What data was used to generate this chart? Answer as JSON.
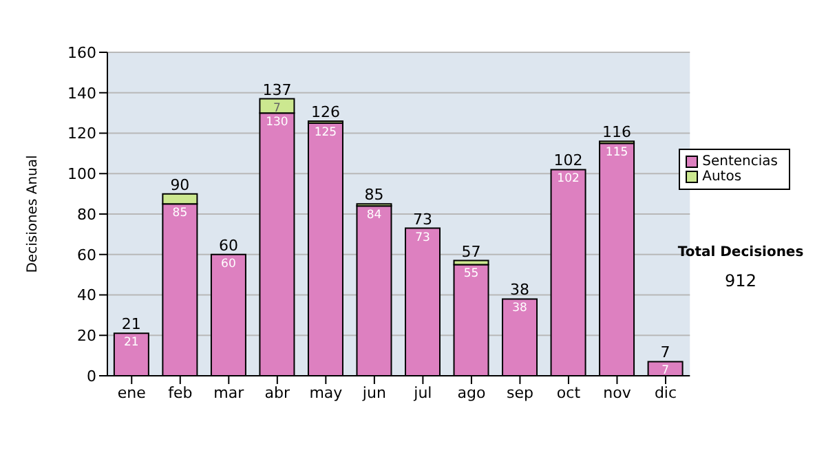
{
  "chart_data": {
    "type": "bar",
    "stacked": true,
    "ylabel": "Decisiones Anual",
    "categories": [
      "ene",
      "feb",
      "mar",
      "abr",
      "may",
      "jun",
      "jul",
      "ago",
      "sep",
      "oct",
      "nov",
      "dic"
    ],
    "series": [
      {
        "name": "Sentencias",
        "color": "#dd80c0",
        "values": [
          21,
          85,
          60,
          130,
          125,
          84,
          73,
          55,
          38,
          102,
          115,
          7
        ],
        "value_labels": [
          "21",
          "85",
          "60",
          "130",
          "125",
          "84",
          "73",
          "55",
          "38",
          "102",
          "115",
          "7"
        ]
      },
      {
        "name": "Autos",
        "color": "#cce890",
        "values": [
          0,
          5,
          0,
          7,
          1,
          1,
          0,
          2,
          0,
          0,
          1,
          0
        ],
        "value_labels": [
          null,
          null,
          null,
          "7",
          null,
          null,
          null,
          null,
          null,
          null,
          null,
          null
        ]
      }
    ],
    "totals": [
      "21",
      "90",
      "60",
      "137",
      "126",
      "85",
      "73",
      "57",
      "38",
      "102",
      "116",
      "7"
    ],
    "ylim": [
      0,
      160
    ],
    "yticks": [
      0,
      20,
      40,
      60,
      80,
      100,
      120,
      140,
      160
    ],
    "grid": "y",
    "legend": "right",
    "annotations": [
      "Total Decisiones",
      "912"
    ]
  }
}
